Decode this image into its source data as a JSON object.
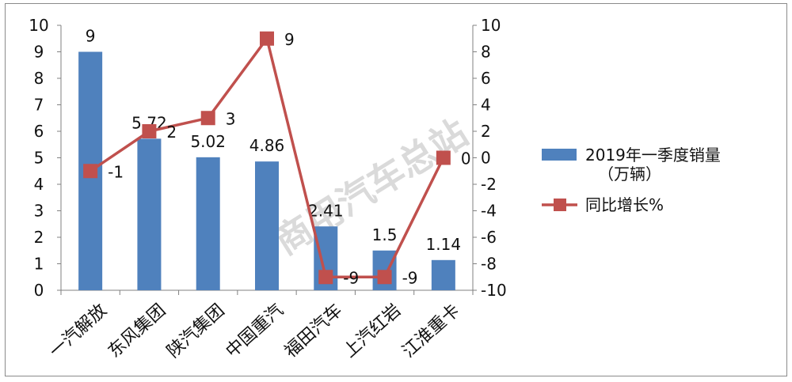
{
  "chart_data": {
    "type": "bar",
    "categories": [
      "一汽解放",
      "东风集团",
      "陕汽集团",
      "中国重汽",
      "福田汽车",
      "上汽红岩",
      "江淮重卡"
    ],
    "series": [
      {
        "name": "2019年一季度销量",
        "name_line2": "（万辆）",
        "type": "bar",
        "axis": "left",
        "values": [
          9,
          5.72,
          5.02,
          4.86,
          2.41,
          1.5,
          1.14
        ],
        "labels": [
          "9",
          "5.72",
          "5.02",
          "4.86",
          "2.41",
          "1.5",
          "1.14"
        ],
        "color": "#4f81bd"
      },
      {
        "name": "同比增长%",
        "type": "line",
        "axis": "right",
        "values": [
          -1,
          2,
          3,
          9,
          -9,
          -9,
          0
        ],
        "labels": [
          "-1",
          "2",
          "3",
          "9",
          "-9",
          "-9",
          "0"
        ],
        "color": "#c0504d"
      }
    ],
    "y_left": {
      "lim": [
        0,
        10
      ],
      "ticks": [
        "0",
        "1",
        "2",
        "3",
        "4",
        "5",
        "6",
        "7",
        "8",
        "9",
        "10"
      ]
    },
    "y_right": {
      "lim": [
        -10,
        10
      ],
      "ticks": [
        "-10",
        "-8",
        "-6",
        "-4",
        "-2",
        "0",
        "2",
        "4",
        "6",
        "8",
        "10"
      ]
    },
    "legend_position": "right",
    "grid": false,
    "watermark": "商用汽车总站"
  }
}
